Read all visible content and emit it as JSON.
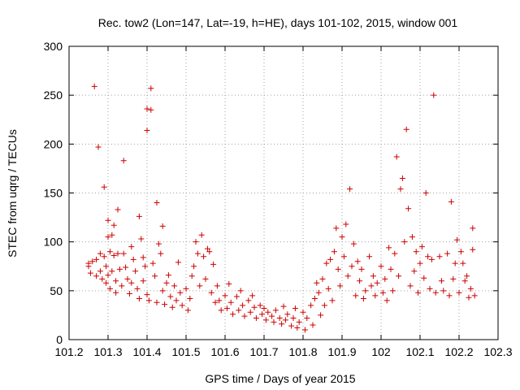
{
  "chart_data": {
    "type": "scatter",
    "title": "Rec. tow2 (Lon=147, Lat=-19, h=HE), days 101-102, 2015, window 001",
    "xlabel": "GPS time / Days of year 2015",
    "ylabel": "STEC from uqrg / TECUs",
    "xlim": [
      101.2,
      102.3
    ],
    "ylim": [
      0,
      300
    ],
    "x_ticks": [
      "101.2",
      "101.3",
      "101.4",
      "101.5",
      "101.6",
      "101.7",
      "101.8",
      "101.9",
      "102",
      "102.1",
      "102.2",
      "102.3"
    ],
    "y_ticks": [
      "0",
      "50",
      "100",
      "150",
      "200",
      "250",
      "300"
    ],
    "grid": true,
    "marker": "+",
    "series": [
      {
        "color": "#cc0000",
        "points": [
          [
            101.25,
            78
          ],
          [
            101.25,
            75
          ],
          [
            101.255,
            68
          ],
          [
            101.26,
            80
          ],
          [
            101.265,
            259
          ],
          [
            101.27,
            82
          ],
          [
            101.27,
            65
          ],
          [
            101.275,
            197
          ],
          [
            101.28,
            88
          ],
          [
            101.28,
            70
          ],
          [
            101.285,
            62
          ],
          [
            101.29,
            156
          ],
          [
            101.29,
            85
          ],
          [
            101.295,
            75
          ],
          [
            101.295,
            58
          ],
          [
            101.3,
            105
          ],
          [
            101.3,
            122
          ],
          [
            101.3,
            66
          ],
          [
            101.305,
            90
          ],
          [
            101.305,
            52
          ],
          [
            101.31,
            107
          ],
          [
            101.31,
            70
          ],
          [
            101.315,
            117
          ],
          [
            101.315,
            86
          ],
          [
            101.32,
            60
          ],
          [
            101.32,
            48
          ],
          [
            101.325,
            133
          ],
          [
            101.325,
            88
          ],
          [
            101.33,
            72
          ],
          [
            101.335,
            55
          ],
          [
            101.34,
            183
          ],
          [
            101.34,
            88
          ],
          [
            101.345,
            74
          ],
          [
            101.35,
            62
          ],
          [
            101.355,
            47
          ],
          [
            101.36,
            95
          ],
          [
            101.36,
            58
          ],
          [
            101.365,
            82
          ],
          [
            101.37,
            70
          ],
          [
            101.375,
            52
          ],
          [
            101.38,
            126
          ],
          [
            101.38,
            42
          ],
          [
            101.385,
            103
          ],
          [
            101.39,
            84
          ],
          [
            101.39,
            60
          ],
          [
            101.395,
            75
          ],
          [
            101.4,
            236
          ],
          [
            101.4,
            214
          ],
          [
            101.4,
            46
          ],
          [
            101.405,
            40
          ],
          [
            101.41,
            257
          ],
          [
            101.41,
            235
          ],
          [
            101.415,
            78
          ],
          [
            101.42,
            65
          ],
          [
            101.425,
            140
          ],
          [
            101.425,
            38
          ],
          [
            101.43,
            98
          ],
          [
            101.435,
            88
          ],
          [
            101.44,
            116
          ],
          [
            101.44,
            50
          ],
          [
            101.445,
            36
          ],
          [
            101.45,
            58
          ],
          [
            101.455,
            66
          ],
          [
            101.46,
            44
          ],
          [
            101.465,
            33
          ],
          [
            101.47,
            55
          ],
          [
            101.475,
            40
          ],
          [
            101.48,
            79
          ],
          [
            101.485,
            48
          ],
          [
            101.49,
            35
          ],
          [
            101.5,
            52
          ],
          [
            101.505,
            30
          ],
          [
            101.51,
            42
          ],
          [
            101.515,
            65
          ],
          [
            101.52,
            75
          ],
          [
            101.525,
            100
          ],
          [
            101.53,
            88
          ],
          [
            101.535,
            55
          ],
          [
            101.54,
            107
          ],
          [
            101.545,
            85
          ],
          [
            101.55,
            62
          ],
          [
            101.555,
            93
          ],
          [
            101.56,
            90
          ],
          [
            101.565,
            48
          ],
          [
            101.57,
            77
          ],
          [
            101.575,
            38
          ],
          [
            101.58,
            55
          ],
          [
            101.585,
            40
          ],
          [
            101.59,
            30
          ],
          [
            101.6,
            45
          ],
          [
            101.605,
            32
          ],
          [
            101.61,
            57
          ],
          [
            101.615,
            38
          ],
          [
            101.62,
            26
          ],
          [
            101.63,
            44
          ],
          [
            101.635,
            30
          ],
          [
            101.64,
            50
          ],
          [
            101.645,
            35
          ],
          [
            101.65,
            24
          ],
          [
            101.66,
            40
          ],
          [
            101.665,
            28
          ],
          [
            101.67,
            45
          ],
          [
            101.675,
            33
          ],
          [
            101.68,
            22
          ],
          [
            101.69,
            35
          ],
          [
            101.695,
            26
          ],
          [
            101.7,
            32
          ],
          [
            101.705,
            20
          ],
          [
            101.71,
            28
          ],
          [
            101.72,
            24
          ],
          [
            101.725,
            18
          ],
          [
            101.73,
            30
          ],
          [
            101.74,
            22
          ],
          [
            101.745,
            16
          ],
          [
            101.75,
            34
          ],
          [
            101.755,
            20
          ],
          [
            101.76,
            26
          ],
          [
            101.77,
            14
          ],
          [
            101.775,
            22
          ],
          [
            101.78,
            32
          ],
          [
            101.785,
            12
          ],
          [
            101.79,
            18
          ],
          [
            101.8,
            28
          ],
          [
            101.805,
            10
          ],
          [
            101.81,
            22
          ],
          [
            101.82,
            35
          ],
          [
            101.825,
            15
          ],
          [
            101.83,
            42
          ],
          [
            101.835,
            58
          ],
          [
            101.84,
            48
          ],
          [
            101.845,
            25
          ],
          [
            101.85,
            62
          ],
          [
            101.855,
            35
          ],
          [
            101.86,
            78
          ],
          [
            101.865,
            52
          ],
          [
            101.87,
            82
          ],
          [
            101.875,
            40
          ],
          [
            101.88,
            90
          ],
          [
            101.885,
            114
          ],
          [
            101.89,
            72
          ],
          [
            101.895,
            55
          ],
          [
            101.9,
            105
          ],
          [
            101.905,
            85
          ],
          [
            101.91,
            118
          ],
          [
            101.915,
            65
          ],
          [
            101.92,
            154
          ],
          [
            101.925,
            75
          ],
          [
            101.93,
            98
          ],
          [
            101.935,
            45
          ],
          [
            101.94,
            80
          ],
          [
            101.945,
            60
          ],
          [
            101.95,
            72
          ],
          [
            101.955,
            42
          ],
          [
            101.96,
            50
          ],
          [
            101.97,
            85
          ],
          [
            101.975,
            55
          ],
          [
            101.98,
            65
          ],
          [
            101.985,
            45
          ],
          [
            101.99,
            58
          ],
          [
            102.0,
            75
          ],
          [
            102.005,
            48
          ],
          [
            102.01,
            62
          ],
          [
            102.015,
            40
          ],
          [
            102.02,
            94
          ],
          [
            102.025,
            72
          ],
          [
            102.03,
            50
          ],
          [
            102.035,
            88
          ],
          [
            102.04,
            187
          ],
          [
            102.045,
            65
          ],
          [
            102.05,
            154
          ],
          [
            102.055,
            165
          ],
          [
            102.06,
            100
          ],
          [
            102.065,
            215
          ],
          [
            102.07,
            134
          ],
          [
            102.075,
            55
          ],
          [
            102.08,
            105
          ],
          [
            102.085,
            70
          ],
          [
            102.09,
            90
          ],
          [
            102.095,
            48
          ],
          [
            102.1,
            78
          ],
          [
            102.105,
            95
          ],
          [
            102.11,
            63
          ],
          [
            102.115,
            150
          ],
          [
            102.12,
            85
          ],
          [
            102.125,
            52
          ],
          [
            102.13,
            82
          ],
          [
            102.135,
            250
          ],
          [
            102.14,
            48
          ],
          [
            102.15,
            85
          ],
          [
            102.155,
            60
          ],
          [
            102.16,
            50
          ],
          [
            102.17,
            88
          ],
          [
            102.175,
            45
          ],
          [
            102.18,
            141
          ],
          [
            102.185,
            62
          ],
          [
            102.19,
            78
          ],
          [
            102.195,
            102
          ],
          [
            102.2,
            48
          ],
          [
            102.205,
            90
          ],
          [
            102.21,
            78
          ],
          [
            102.215,
            60
          ],
          [
            102.22,
            65
          ],
          [
            102.225,
            43
          ],
          [
            102.23,
            52
          ],
          [
            102.235,
            114
          ],
          [
            102.235,
            92
          ],
          [
            102.24,
            45
          ]
        ]
      }
    ]
  }
}
